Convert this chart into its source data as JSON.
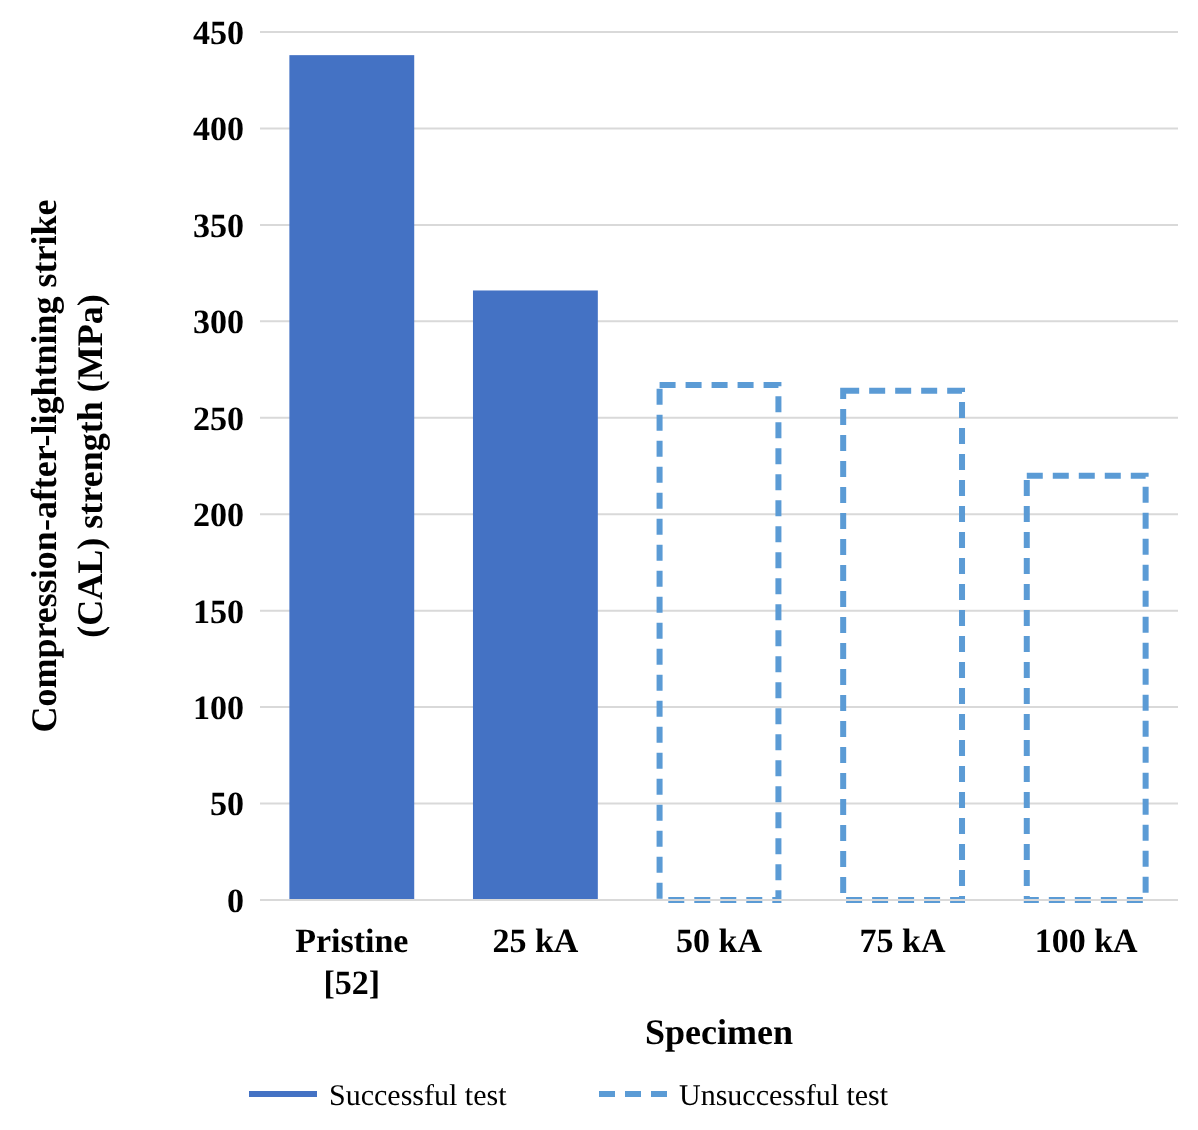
{
  "chart_data": {
    "type": "bar",
    "xlabel": "Specimen",
    "ylabel": "Compression-after-lightning strike (CAL) strength (MPa)",
    "categories": [
      "Pristine [52]",
      "25 kA",
      "50 kA",
      "75 kA",
      "100 kA"
    ],
    "series": [
      {
        "name": "Successful test",
        "color": "#4472c4",
        "line_style": "solid",
        "values": [
          438,
          316,
          null,
          null,
          null
        ]
      },
      {
        "name": "Unsuccessful test",
        "color": "#5b9bd5",
        "line_style": "dashed",
        "values": [
          null,
          null,
          267,
          264,
          220
        ]
      }
    ],
    "ylim": [
      0,
      450
    ],
    "yticks": [
      0,
      50,
      100,
      150,
      200,
      250,
      300,
      350,
      400,
      450
    ],
    "grid": "y",
    "legend": "bottom"
  }
}
